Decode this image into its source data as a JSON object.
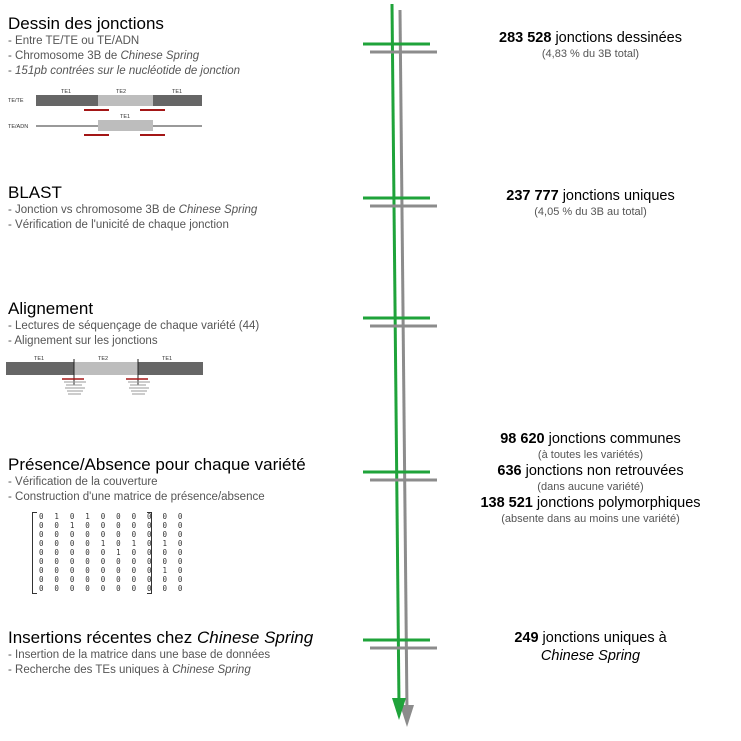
{
  "colors": {
    "accent_green": "#1fa33a",
    "accent_gray": "#8c8c8c",
    "bar_dark": "#666666",
    "bar_light": "#bdbdbd",
    "primer_red": "#a31616"
  },
  "steps": [
    {
      "title": "Dessin des jonctions",
      "bullets": [
        {
          "pre": "Entre TE/TE ou TE/ADN",
          "em": "",
          "post": ""
        },
        {
          "pre": "Chromosome 3B de ",
          "em": "Chinese Spring",
          "post": ""
        },
        {
          "pre": "",
          "em": "151pb contrées sur le nucléotide de jonction",
          "post": ""
        }
      ],
      "figure": {
        "row1_label": "TE/TE",
        "row2_label": "TE/ADN",
        "seg1": "TE1",
        "seg2": "TE2",
        "seg3": "TE1",
        "seg_single": "TE1"
      }
    },
    {
      "title": "BLAST",
      "bullets": [
        {
          "pre": "Jonction vs chromosome 3B de ",
          "em": "Chinese Spring",
          "post": ""
        },
        {
          "pre": "Vérification de l'unicité de chaque jonction",
          "em": "",
          "post": ""
        }
      ]
    },
    {
      "title": "Alignement",
      "bullets": [
        {
          "pre": "Lectures de séquençage de chaque variété (44)",
          "em": "",
          "post": ""
        },
        {
          "pre": "Alignement sur les jonctions",
          "em": "",
          "post": ""
        }
      ],
      "figure": {
        "seg1": "TE1",
        "seg2": "TE2",
        "seg3": "TE1"
      }
    },
    {
      "title": "Présence/Absence pour chaque variété",
      "bullets": [
        {
          "pre": "Vérification de la couverture",
          "em": "",
          "post": ""
        },
        {
          "pre": "Construction d'une matrice de présence/absence",
          "em": "",
          "post": ""
        }
      ],
      "matrix": [
        "0 1 0 1 0 0 0 0 0 0",
        "0 0 1 0 0 0 0 0 0 0",
        "0 0 0 0 0 0 0 0 0 0",
        "0 0 0 0 1 0 1 0 1 0",
        "0 0 0 0 0 1 0 0 0 0",
        "0 0 0 0 0 0 0 0 0 0",
        "0 0 0 0 0 0 0 0 1 0",
        "0 0 0 0 0 0 0 0 0 0",
        "0 0 0 0 0 0 0 0 0 0"
      ]
    },
    {
      "title_pre": "Insertions récentes chez ",
      "title_em": "Chinese Spring",
      "bullets": [
        {
          "pre": "Insertion de la matrice dans une base de données",
          "em": "",
          "post": ""
        },
        {
          "pre": "Recherche des TEs uniques à ",
          "em": "Chinese Spring",
          "post": ""
        }
      ]
    }
  ],
  "results": [
    {
      "lines": [
        {
          "num": "283 528",
          "text": " jonctions dessinées",
          "note": "(4,83 % du 3B total)"
        }
      ]
    },
    {
      "lines": [
        {
          "num": "237 777",
          "text": " jonctions uniques",
          "note": "(4,05 % du 3B au total)"
        }
      ]
    },
    {
      "lines": [
        {
          "num": "98 620",
          "text": " jonctions communes",
          "note": "(à toutes les variétés)"
        },
        {
          "num": "636",
          "text": " jonctions non retrouvées",
          "note": "(dans aucune variété)"
        },
        {
          "num": "138 521",
          "text": " jonctions polymorphiques",
          "note": "(absente dans au moins une variété)"
        }
      ]
    },
    {
      "lines": [
        {
          "num": "249",
          "text": " jonctions uniques à",
          "em": "Chinese Spring"
        }
      ]
    }
  ]
}
